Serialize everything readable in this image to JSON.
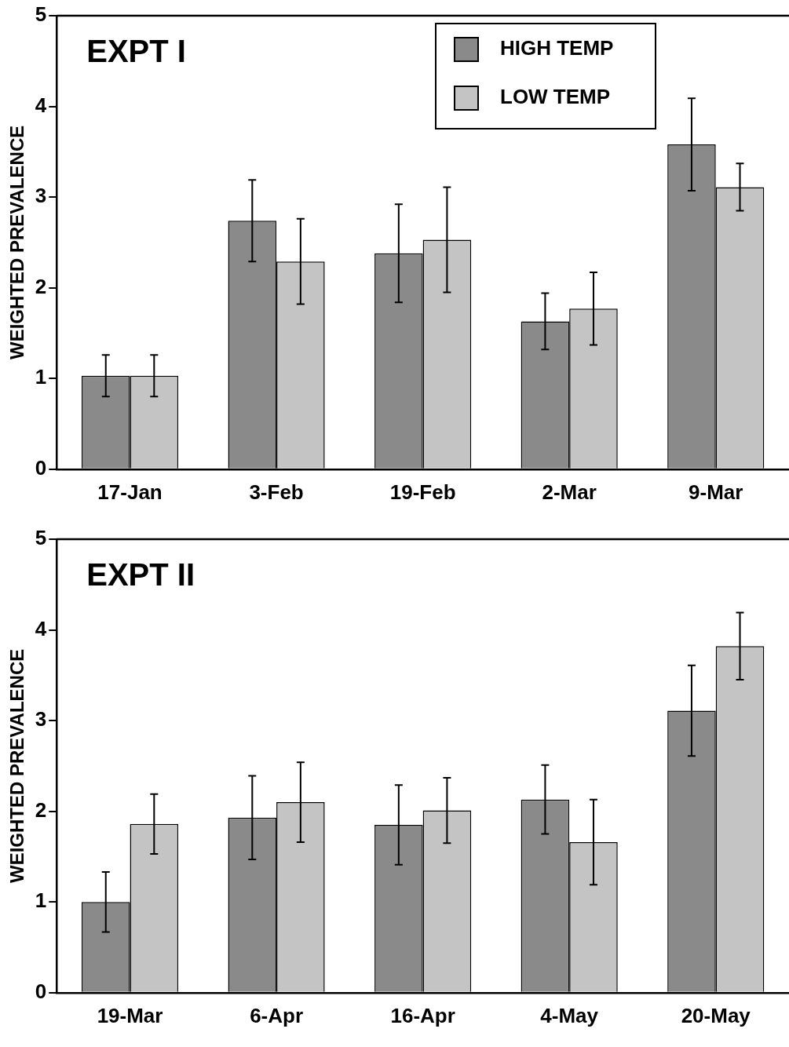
{
  "chart_data": [
    {
      "type": "bar",
      "title": "EXPT I",
      "ylabel": "WEIGHTED PREVALENCE",
      "categories": [
        "17-Jan",
        "3-Feb",
        "19-Feb",
        "2-Mar",
        "9-Mar"
      ],
      "series": [
        {
          "name": "HIGH TEMP",
          "color": "#8a8a8a",
          "values": [
            1.03,
            2.74,
            2.38,
            1.63,
            3.58
          ],
          "errors": [
            0.23,
            0.45,
            0.54,
            0.31,
            0.51
          ]
        },
        {
          "name": "LOW TEMP",
          "color": "#c4c4c4",
          "values": [
            1.03,
            2.29,
            2.53,
            1.77,
            3.11
          ],
          "errors": [
            0.23,
            0.47,
            0.58,
            0.4,
            0.26
          ]
        }
      ],
      "ylim": [
        0,
        5
      ],
      "yticks": [
        0,
        1,
        2,
        3,
        4,
        5
      ],
      "legend": "top right"
    },
    {
      "type": "bar",
      "title": "EXPT II",
      "ylabel": "WEIGHTED PREVALENCE",
      "categories": [
        "19-Mar",
        "6-Apr",
        "16-Apr",
        "4-May",
        "20-May"
      ],
      "series": [
        {
          "color": "#8a8a8a",
          "values": [
            1.0,
            1.93,
            1.85,
            2.13,
            3.11
          ],
          "errors": [
            0.33,
            0.46,
            0.44,
            0.38,
            0.5
          ]
        },
        {
          "color": "#c4c4c4",
          "values": [
            1.86,
            2.1,
            2.01,
            1.66,
            3.82
          ],
          "errors": [
            0.33,
            0.44,
            0.36,
            0.47,
            0.37
          ]
        }
      ],
      "ylim": [
        0,
        5
      ],
      "yticks": [
        0,
        1,
        2,
        3,
        4,
        5
      ]
    }
  ]
}
